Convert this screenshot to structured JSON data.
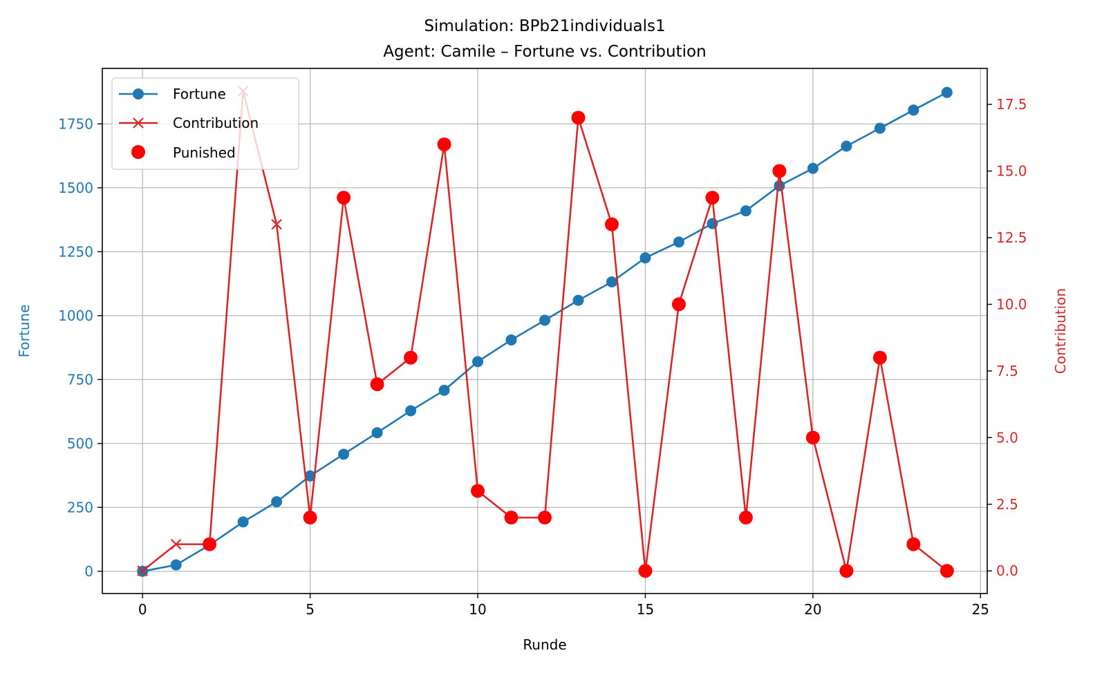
{
  "chart_data": {
    "type": "line",
    "title": "Simulation: BPb21individuals1",
    "subtitle": "Agent: Camile – Fortune vs. Contribution",
    "xlabel": "Runde",
    "ylabel_left": "Fortune",
    "ylabel_right": "Contribution",
    "xlim": [
      -1.2,
      25.2
    ],
    "ylim_left": [
      -87,
      1967
    ],
    "ylim_right": [
      -0.85,
      18.85
    ],
    "xticks": [
      0,
      5,
      10,
      15,
      20,
      25
    ],
    "yticks_left": [
      0,
      250,
      500,
      750,
      1000,
      1250,
      1500,
      1750
    ],
    "yticks_right": [
      0.0,
      2.5,
      5.0,
      7.5,
      10.0,
      12.5,
      15.0,
      17.5
    ],
    "yticks_right_labels": [
      "0.0",
      "2.5",
      "5.0",
      "7.5",
      "10.0",
      "12.5",
      "15.0",
      "17.5"
    ],
    "grid": true,
    "legend_position": "top-left",
    "colors": {
      "fortune": "#1f77b4",
      "contribution": "#d62728",
      "punished": "#ff0000"
    },
    "x": [
      0,
      1,
      2,
      3,
      4,
      5,
      6,
      7,
      8,
      9,
      10,
      11,
      12,
      13,
      14,
      15,
      16,
      17,
      18,
      19,
      20,
      21,
      22,
      23,
      24
    ],
    "series": [
      {
        "name": "Fortune",
        "axis": "left",
        "marker": "o",
        "values": [
          0,
          25,
          103,
          193,
          272,
          373,
          458,
          542,
          628,
          708,
          820,
          905,
          982,
          1060,
          1132,
          1226,
          1288,
          1360,
          1410,
          1508,
          1576,
          1663,
          1733,
          1804,
          1873
        ]
      },
      {
        "name": "Contribution",
        "axis": "right",
        "marker": "x",
        "values": [
          0,
          1,
          1,
          18,
          13,
          2,
          14,
          7,
          8,
          16,
          3,
          2,
          2,
          17,
          13,
          0,
          10,
          14,
          2,
          15,
          5,
          0,
          8,
          1,
          0
        ]
      }
    ],
    "punished": {
      "name": "Punished",
      "x": [
        2,
        5,
        6,
        7,
        8,
        9,
        10,
        11,
        12,
        13,
        14,
        15,
        16,
        17,
        18,
        19,
        20,
        21,
        22,
        23,
        24
      ],
      "values": [
        1,
        2,
        14,
        7,
        8,
        16,
        3,
        2,
        2,
        17,
        13,
        0,
        10,
        14,
        2,
        15,
        5,
        0,
        8,
        1,
        0
      ]
    }
  }
}
